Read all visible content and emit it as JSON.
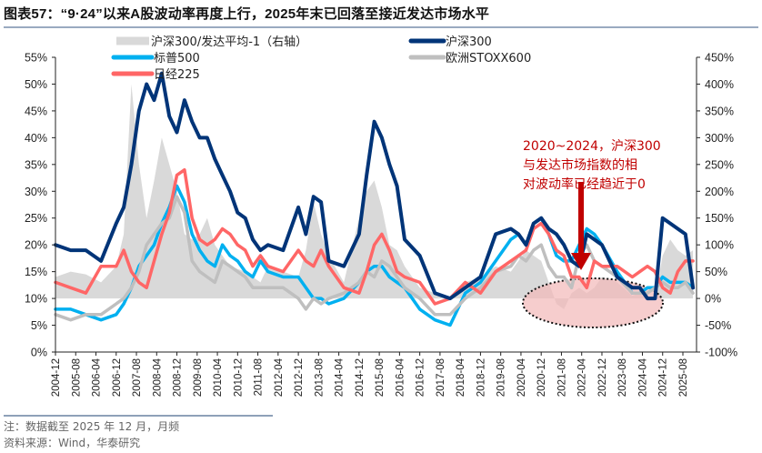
{
  "title": "图表57：“9·24”以来A股波动率再度上行，2025年末已回落至接近发达市场水平",
  "note": "注：数据截至 2025 年 12 月，月频",
  "source": "资料来源：Wind，华泰研究",
  "chart_data": {
    "type": "line",
    "title": "“9·24”以来A股波动率再度上行，2025年末已回落至接近发达市场水平",
    "xlabel": "",
    "ylabel": "",
    "ylim": [
      0,
      55
    ],
    "y2lim": [
      -100,
      450
    ],
    "left_ticks": [
      "0%",
      "5%",
      "10%",
      "15%",
      "20%",
      "25%",
      "30%",
      "35%",
      "40%",
      "45%",
      "50%",
      "55%"
    ],
    "right_ticks": [
      "-100%",
      "-50%",
      "0%",
      "50%",
      "100%",
      "150%",
      "200%",
      "250%",
      "300%",
      "350%",
      "400%",
      "450%"
    ],
    "x_ticks": [
      "2004-12",
      "2005-08",
      "2006-04",
      "2006-12",
      "2007-08",
      "2008-04",
      "2008-12",
      "2009-08",
      "2010-04",
      "2010-12",
      "2011-08",
      "2012-04",
      "2012-12",
      "2013-08",
      "2014-04",
      "2014-12",
      "2015-08",
      "2016-04",
      "2016-12",
      "2017-08",
      "2018-04",
      "2018-12",
      "2019-08",
      "2020-04",
      "2020-12",
      "2021-08",
      "2022-04",
      "2022-12",
      "2023-08",
      "2024-04",
      "2024-12",
      "2025-08"
    ],
    "grid": false,
    "legend_position": "top",
    "x": [
      "2004-12",
      "2005-06",
      "2005-12",
      "2006-06",
      "2006-12",
      "2007-03",
      "2007-06",
      "2007-09",
      "2007-12",
      "2008-03",
      "2008-06",
      "2008-09",
      "2008-12",
      "2009-03",
      "2009-06",
      "2009-09",
      "2009-12",
      "2010-03",
      "2010-06",
      "2010-09",
      "2010-12",
      "2011-03",
      "2011-06",
      "2011-09",
      "2011-12",
      "2012-06",
      "2012-12",
      "2013-03",
      "2013-06",
      "2013-09",
      "2013-12",
      "2014-06",
      "2014-12",
      "2015-03",
      "2015-06",
      "2015-09",
      "2015-12",
      "2016-03",
      "2016-06",
      "2016-12",
      "2017-06",
      "2017-12",
      "2018-06",
      "2018-12",
      "2019-06",
      "2019-12",
      "2020-03",
      "2020-06",
      "2020-09",
      "2020-12",
      "2021-03",
      "2021-06",
      "2021-09",
      "2021-12",
      "2022-03",
      "2022-06",
      "2022-09",
      "2022-12",
      "2023-06",
      "2023-12",
      "2024-03",
      "2024-06",
      "2024-09",
      "2024-12",
      "2025-03",
      "2025-06",
      "2025-09",
      "2025-12"
    ],
    "series": [
      {
        "name": "沪深300/发达平均-1（右轴）",
        "axis": "right",
        "type": "area",
        "color": "#d9d9d9",
        "values": [
          40,
          50,
          45,
          30,
          60,
          120,
          400,
          250,
          150,
          220,
          300,
          250,
          200,
          120,
          110,
          120,
          150,
          100,
          80,
          60,
          55,
          50,
          40,
          30,
          60,
          50,
          40,
          90,
          180,
          120,
          80,
          30,
          150,
          200,
          220,
          170,
          100,
          90,
          60,
          20,
          10,
          0,
          30,
          40,
          60,
          50,
          70,
          90,
          80,
          70,
          30,
          -10,
          -20,
          10,
          20,
          10,
          20,
          40,
          30,
          5,
          10,
          -5,
          0,
          80,
          110,
          90,
          80,
          90
        ]
      },
      {
        "name": "沪深300",
        "axis": "left",
        "type": "line",
        "color": "#003478",
        "values": [
          20,
          19,
          19,
          17,
          24,
          27,
          35,
          45,
          50,
          47,
          52,
          44,
          41,
          47,
          43,
          40,
          40,
          36,
          33,
          30,
          26,
          25,
          21,
          19,
          20,
          19,
          27,
          22,
          29,
          28,
          17,
          16,
          22,
          33,
          43,
          40,
          35,
          31,
          21,
          18,
          11,
          10,
          12,
          14,
          22,
          23,
          22,
          20,
          24,
          25,
          23,
          22,
          20,
          17,
          16,
          22,
          21,
          20,
          14,
          12,
          12,
          10,
          10,
          25,
          24,
          23,
          22,
          12
        ]
      },
      {
        "name": "标普500",
        "axis": "left",
        "type": "line",
        "color": "#00b0f0",
        "values": [
          8,
          8,
          7,
          6,
          7,
          9,
          12,
          16,
          18,
          20,
          24,
          27,
          31,
          28,
          22,
          19,
          17,
          16,
          20,
          18,
          17,
          15,
          14,
          17,
          15,
          14,
          14,
          12,
          10,
          10,
          9,
          10,
          13,
          15,
          16,
          16,
          14,
          13,
          12,
          8,
          6,
          5,
          11,
          13,
          17,
          21,
          22,
          20,
          24,
          25,
          22,
          18,
          17,
          17,
          20,
          23,
          22,
          20,
          15,
          11,
          11,
          12,
          12,
          14,
          13,
          13,
          13,
          12
        ]
      },
      {
        "name": "欧洲STOXX600",
        "axis": "left",
        "type": "line",
        "color": "#bfbfbf",
        "values": [
          7,
          6,
          7,
          7,
          9,
          10,
          12,
          15,
          20,
          22,
          24,
          25,
          29,
          26,
          17,
          15,
          14,
          13,
          17,
          16,
          15,
          14,
          12,
          12,
          12,
          12,
          10,
          8,
          10,
          9,
          10,
          11,
          13,
          15,
          14,
          17,
          16,
          14,
          12,
          10,
          7,
          7,
          10,
          12,
          15,
          16,
          18,
          17,
          19,
          20,
          16,
          14,
          14,
          12,
          18,
          20,
          17,
          16,
          14,
          11,
          11,
          11,
          12,
          13,
          12,
          12,
          13,
          11
        ]
      },
      {
        "name": "日经225",
        "axis": "left",
        "type": "line",
        "color": "#ff6666",
        "values": [
          13,
          12,
          11,
          16,
          16,
          19,
          15,
          13,
          12,
          17,
          22,
          26,
          33,
          34,
          25,
          21,
          20,
          21,
          23,
          22,
          20,
          19,
          16,
          18,
          16,
          15,
          19,
          17,
          16,
          19,
          16,
          12,
          11,
          15,
          20,
          22,
          19,
          15,
          14,
          13,
          9,
          10,
          13,
          11,
          15,
          17,
          18,
          19,
          23,
          24,
          22,
          19,
          18,
          14,
          14,
          12,
          17,
          16,
          16,
          14,
          15,
          16,
          15,
          12,
          11,
          15,
          17,
          17
        ]
      }
    ],
    "legend": [
      "沪深300/发达平均-1（右轴）",
      "沪深300",
      "标普500",
      "欧洲STOXX600",
      "日经225"
    ],
    "annotation": {
      "lines": [
        "2020~2024，沪深300",
        "与发达市场指数的相",
        "对波动率已经趋近于0"
      ],
      "arrow_color": "#c00000",
      "highlight_color": "#f2b8b8"
    }
  }
}
